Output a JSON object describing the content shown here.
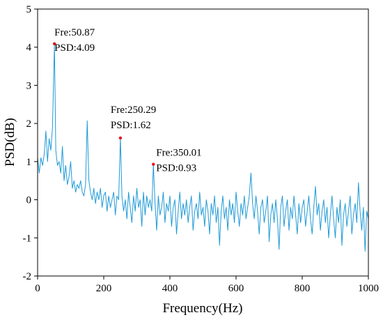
{
  "chart_data": {
    "type": "line",
    "xlabel": "Frequency(Hz)",
    "ylabel": "PSD(dB)",
    "xlim": [
      0,
      1000
    ],
    "ylim": [
      -2,
      5
    ],
    "xticks": [
      0,
      200,
      400,
      600,
      800,
      1000
    ],
    "yticks": [
      -2,
      -1,
      0,
      1,
      2,
      3,
      4,
      5
    ],
    "grid": false,
    "x": [
      0,
      5,
      10,
      15,
      20,
      25,
      30,
      35,
      40,
      45,
      50.87,
      55,
      60,
      65,
      70,
      75,
      80,
      85,
      90,
      95,
      100,
      105,
      110,
      115,
      120,
      125,
      130,
      135,
      140,
      145,
      150,
      155,
      160,
      165,
      170,
      175,
      180,
      185,
      190,
      195,
      200,
      205,
      210,
      215,
      220,
      225,
      230,
      235,
      240,
      245,
      250.29,
      255,
      260,
      265,
      270,
      275,
      280,
      285,
      290,
      295,
      300,
      305,
      310,
      315,
      320,
      325,
      330,
      335,
      340,
      345,
      350.01,
      355,
      360,
      365,
      370,
      375,
      380,
      385,
      390,
      395,
      400,
      405,
      410,
      415,
      420,
      425,
      430,
      435,
      440,
      445,
      450,
      455,
      460,
      465,
      470,
      475,
      480,
      485,
      490,
      495,
      500,
      505,
      510,
      515,
      520,
      525,
      530,
      535,
      540,
      545,
      550,
      555,
      560,
      565,
      570,
      575,
      580,
      585,
      590,
      595,
      600,
      605,
      610,
      615,
      620,
      625,
      630,
      635,
      640,
      645,
      650,
      655,
      660,
      665,
      670,
      675,
      680,
      685,
      690,
      695,
      700,
      705,
      710,
      715,
      720,
      725,
      730,
      735,
      740,
      745,
      750,
      755,
      760,
      765,
      770,
      775,
      780,
      785,
      790,
      795,
      800,
      805,
      810,
      815,
      820,
      825,
      830,
      835,
      840,
      845,
      850,
      855,
      860,
      865,
      870,
      875,
      880,
      885,
      890,
      895,
      900,
      905,
      910,
      915,
      920,
      925,
      930,
      935,
      940,
      945,
      950,
      955,
      960,
      965,
      970,
      975,
      980,
      985,
      990,
      995,
      1000
    ],
    "series": [
      {
        "color": "#1f9ad6",
        "values": [
          1.1,
          0.7,
          1.1,
          0.9,
          1.2,
          1.8,
          1.0,
          1.6,
          1.3,
          1.9,
          4.09,
          1.3,
          0.9,
          1.0,
          0.7,
          1.4,
          0.5,
          0.9,
          0.4,
          0.6,
          1.0,
          0.3,
          0.5,
          0.2,
          0.4,
          0.3,
          0.5,
          0.2,
          0.1,
          0.4,
          2.07,
          0.5,
          0.2,
          0.0,
          0.3,
          -0.1,
          0.2,
          0.0,
          0.3,
          -0.2,
          0.1,
          0.2,
          -0.3,
          0.1,
          -0.2,
          0.0,
          0.2,
          -0.4,
          0.1,
          0.0,
          1.62,
          0.1,
          -0.3,
          0.0,
          -0.5,
          0.2,
          -0.2,
          -0.6,
          0.1,
          -0.3,
          0.3,
          -0.2,
          0.0,
          -0.7,
          0.2,
          -0.4,
          0.1,
          -0.2,
          0.0,
          -0.3,
          0.93,
          -0.1,
          -0.8,
          0.1,
          -0.4,
          -0.2,
          0.2,
          -0.6,
          -0.1,
          -0.3,
          0.1,
          -0.7,
          -0.2,
          0.0,
          -0.9,
          -0.3,
          0.2,
          -0.5,
          -0.1,
          -0.4,
          0.0,
          -0.6,
          -0.2,
          0.1,
          -0.8,
          -0.3,
          -0.1,
          -0.5,
          0.2,
          -0.4,
          -0.2,
          -0.7,
          0.0,
          -0.3,
          -0.9,
          -0.1,
          -0.4,
          0.1,
          -0.6,
          -0.2,
          -1.2,
          -0.3,
          0.1,
          -0.5,
          -0.2,
          -0.8,
          0.0,
          -0.4,
          -0.1,
          -0.6,
          0.2,
          -0.3,
          -0.7,
          -0.1,
          -0.4,
          0.1,
          -0.5,
          -0.2,
          0.1,
          0.7,
          -0.1,
          -0.5,
          0.1,
          -0.3,
          -0.9,
          -0.2,
          0.0,
          -0.6,
          -0.3,
          0.1,
          -1.1,
          -0.4,
          -0.1,
          -0.6,
          0.0,
          -0.5,
          -1.3,
          -0.2,
          0.1,
          -0.7,
          -0.3,
          0.0,
          -0.8,
          -0.2,
          -0.5,
          0.1,
          -0.4,
          -0.9,
          -0.1,
          -0.6,
          -0.2,
          0.0,
          -0.7,
          -0.3,
          0.1,
          -0.5,
          -0.9,
          -0.2,
          0.35,
          -0.4,
          -0.1,
          -0.8,
          -0.3,
          0.0,
          -0.6,
          -0.2,
          -1.0,
          -0.4,
          0.1,
          -0.5,
          -1.0,
          -0.2,
          -0.6,
          0.0,
          -1.2,
          -0.4,
          -0.1,
          -0.7,
          -0.3,
          0.1,
          -0.9,
          -0.4,
          -0.1,
          -0.6,
          0.45,
          -0.3,
          -0.8,
          -0.2,
          -1.35,
          -0.3,
          -0.5
        ]
      }
    ],
    "annotations": [
      {
        "x": 50.87,
        "y": 4.09,
        "label_x": "Fre:50.87",
        "label_y": "PSD:4.09",
        "color": "#e8101a"
      },
      {
        "x": 250.29,
        "y": 1.62,
        "label_x": "Fre:250.29",
        "label_y": "PSD:1.62",
        "color": "#e8101a"
      },
      {
        "x": 350.01,
        "y": 0.93,
        "label_x": "Fre:350.01",
        "label_y": "PSD:0.93",
        "color": "#e8101a"
      }
    ]
  }
}
